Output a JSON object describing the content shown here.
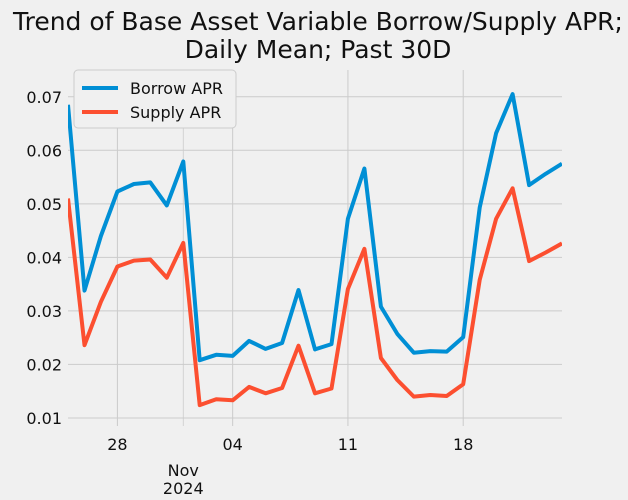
{
  "chart_data": {
    "type": "line",
    "title_lines": [
      "Trend of Base Asset Variable Borrow/Supply APR;",
      "Daily Mean; Past 30D"
    ],
    "xlabel": "",
    "ylabel": "",
    "x": [
      "2024-10-25",
      "2024-10-26",
      "2024-10-27",
      "2024-10-28",
      "2024-10-29",
      "2024-10-30",
      "2024-10-31",
      "2024-11-01",
      "2024-11-02",
      "2024-11-03",
      "2024-11-04",
      "2024-11-05",
      "2024-11-06",
      "2024-11-07",
      "2024-11-08",
      "2024-11-09",
      "2024-11-10",
      "2024-11-11",
      "2024-11-12",
      "2024-11-13",
      "2024-11-14",
      "2024-11-15",
      "2024-11-16",
      "2024-11-17",
      "2024-11-18",
      "2024-11-19",
      "2024-11-20",
      "2024-11-21",
      "2024-11-22",
      "2024-11-23",
      "2024-11-24"
    ],
    "x_range": [
      "2024-10-25",
      "2024-11-24"
    ],
    "ylim": [
      0.0085,
      0.075
    ],
    "grid": true,
    "legend_position": "top-left",
    "x_ticks": [
      {
        "date": "2024-10-28",
        "label": "28"
      },
      {
        "date": "2024-11-01",
        "label": "Nov",
        "label2": "2024",
        "minor": true
      },
      {
        "date": "2024-11-04",
        "label": "04"
      },
      {
        "date": "2024-11-11",
        "label": "11"
      },
      {
        "date": "2024-11-18",
        "label": "18"
      }
    ],
    "y_ticks": [
      "0.01",
      "0.02",
      "0.03",
      "0.04",
      "0.05",
      "0.06",
      "0.07"
    ],
    "series": [
      {
        "name": "Borrow APR",
        "color": "#008fd5",
        "values": [
          0.0685,
          0.0338,
          0.044,
          0.0523,
          0.0537,
          0.054,
          0.0497,
          0.0579,
          0.0208,
          0.0218,
          0.0216,
          0.0244,
          0.0229,
          0.024,
          0.0339,
          0.0228,
          0.0238,
          0.0472,
          0.0566,
          0.0308,
          0.0257,
          0.0222,
          0.0225,
          0.0224,
          0.0251,
          0.0493,
          0.0632,
          0.0705,
          0.0535,
          0.0556,
          0.0575
        ]
      },
      {
        "name": "Supply APR",
        "color": "#fc4f30",
        "values": [
          0.051,
          0.0236,
          0.0317,
          0.0383,
          0.0394,
          0.0396,
          0.0362,
          0.0427,
          0.0124,
          0.0135,
          0.0133,
          0.0158,
          0.0146,
          0.0156,
          0.0235,
          0.0146,
          0.0155,
          0.0341,
          0.0416,
          0.0212,
          0.0171,
          0.014,
          0.0143,
          0.0141,
          0.0163,
          0.0358,
          0.0472,
          0.0529,
          0.0393,
          0.0409,
          0.0426
        ]
      }
    ]
  }
}
